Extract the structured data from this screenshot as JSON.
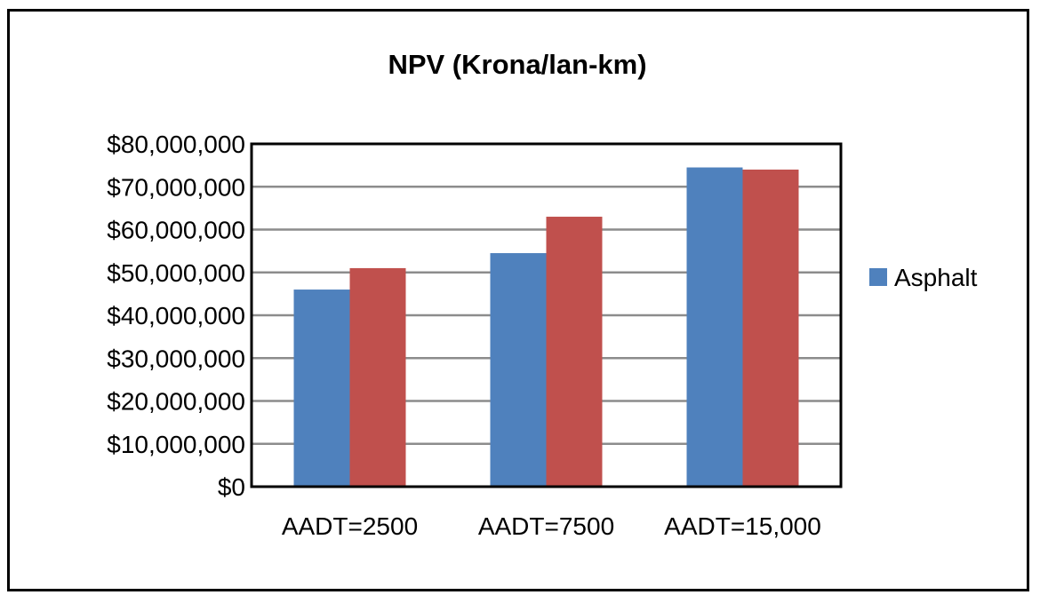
{
  "chart_data": {
    "type": "bar",
    "title": "NPV (Krona/lan-km)",
    "xlabel": "",
    "ylabel": "",
    "categories": [
      "AADT=2500",
      "AADT=7500",
      "AADT=15,000"
    ],
    "series": [
      {
        "name": "Asphalt",
        "values": [
          46000000,
          54500000,
          74500000
        ],
        "color": "#4f81bd"
      },
      {
        "values": [
          51000000,
          63000000,
          74000000
        ],
        "color": "#c0504d"
      }
    ],
    "ylim": [
      0,
      80000000
    ],
    "yticks": [
      0,
      10000000,
      20000000,
      30000000,
      40000000,
      50000000,
      60000000,
      70000000,
      80000000
    ],
    "ytick_labels": [
      "$0",
      "$10,000,000",
      "$20,000,000",
      "$30,000,000",
      "$40,000,000",
      "$50,000,000",
      "$60,000,000",
      "$70,000,000",
      "$80,000,000"
    ],
    "grid": true,
    "legend": {
      "position": "right",
      "entries": [
        "Asphalt"
      ]
    }
  }
}
